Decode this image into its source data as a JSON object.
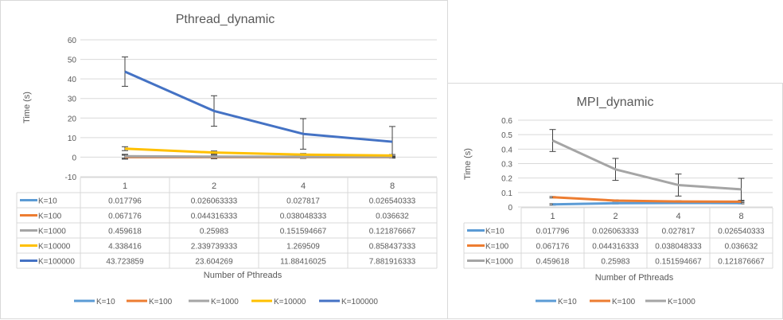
{
  "charts": [
    {
      "type": "line",
      "title": "Pthread_dynamic",
      "xlabel": "Number of Pthreads",
      "ylabel": "Time (s)",
      "categories": [
        "1",
        "2",
        "4",
        "8"
      ],
      "ylim": [
        -10,
        60
      ],
      "yticks": [
        "-10",
        "0",
        "10",
        "20",
        "30",
        "40",
        "50",
        "60"
      ],
      "grid": true,
      "legend": "bottom",
      "error_bars": true,
      "series": [
        {
          "name": "K=10",
          "color": "#5b9bd5",
          "values": [
            0.017796,
            0.026063333,
            0.027817,
            0.026540333
          ],
          "labels": [
            "0.017796",
            "0.026063333",
            "0.027817",
            "0.026540333"
          ]
        },
        {
          "name": "K=100",
          "color": "#ed7d31",
          "values": [
            0.067176,
            0.044316333,
            0.038048333,
            0.036632
          ],
          "labels": [
            "0.067176",
            "0.044316333",
            "0.038048333",
            "0.036632"
          ]
        },
        {
          "name": "K=1000",
          "color": "#a5a5a5",
          "values": [
            0.459618,
            0.25983,
            0.151594667,
            0.121876667
          ],
          "labels": [
            "0.459618",
            "0.25983",
            "0.151594667",
            "0.121876667"
          ]
        },
        {
          "name": "K=10000",
          "color": "#ffc000",
          "values": [
            4.338416,
            2.339739333,
            1.269509,
            0.858437333
          ],
          "labels": [
            "4.338416",
            "2.339739333",
            "1.269509",
            "0.858437333"
          ]
        },
        {
          "name": "K=100000",
          "color": "#4472c4",
          "values": [
            43.723859,
            23.604269,
            11.88416025,
            7.881916333
          ],
          "labels": [
            "43.723859",
            "23.604269",
            "11.88416025",
            "7.881916333"
          ]
        }
      ]
    },
    {
      "type": "line",
      "title": "MPI_dynamic",
      "xlabel": "Number of Pthreads",
      "ylabel": "Time (s)",
      "categories": [
        "1",
        "2",
        "4",
        "8"
      ],
      "ylim": [
        0,
        0.6
      ],
      "yticks": [
        "0",
        "0.1",
        "0.2",
        "0.3",
        "0.4",
        "0.5",
        "0.6"
      ],
      "grid": true,
      "legend": "bottom",
      "error_bars": true,
      "series": [
        {
          "name": "K=10",
          "color": "#5b9bd5",
          "values": [
            0.017796,
            0.026063333,
            0.027817,
            0.026540333
          ],
          "labels": [
            "0.017796",
            "0.026063333",
            "0.027817",
            "0.026540333"
          ]
        },
        {
          "name": "K=100",
          "color": "#ed7d31",
          "values": [
            0.067176,
            0.044316333,
            0.038048333,
            0.036632
          ],
          "labels": [
            "0.067176",
            "0.044316333",
            "0.038048333",
            "0.036632"
          ]
        },
        {
          "name": "K=1000",
          "color": "#a5a5a5",
          "values": [
            0.459618,
            0.25983,
            0.151594667,
            0.121876667
          ],
          "labels": [
            "0.459618",
            "0.25983",
            "0.151594667",
            "0.121876667"
          ]
        }
      ]
    }
  ]
}
